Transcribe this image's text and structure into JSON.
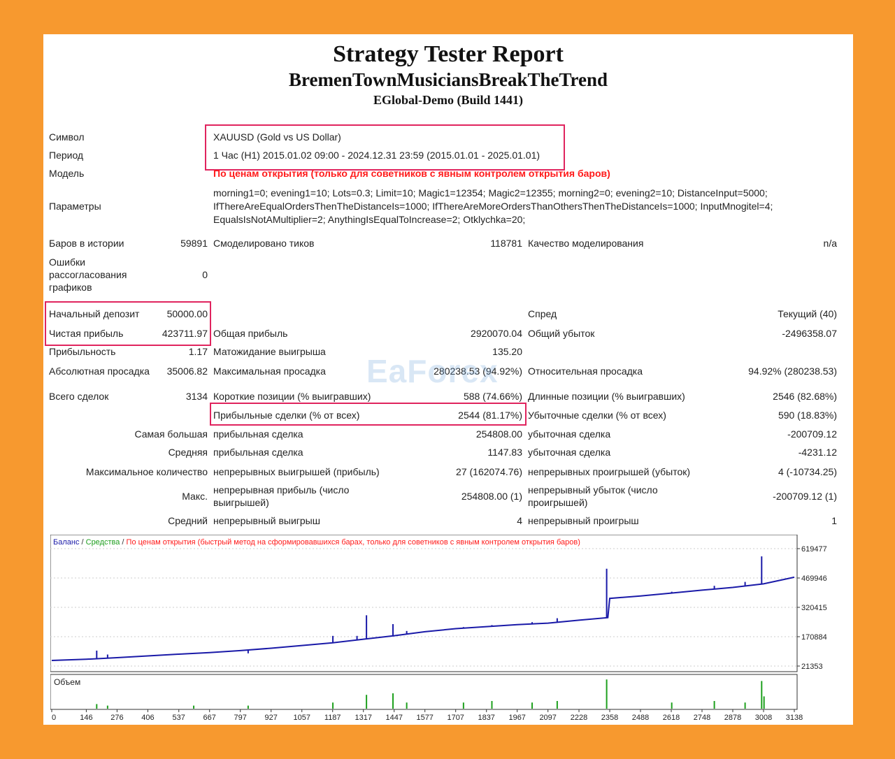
{
  "header": {
    "title": "Strategy Tester Report",
    "expert": "BremenTownMusiciansBreakTheTrend",
    "server": "EGlobal-Demo (Build 1441)"
  },
  "info": {
    "symbol_label": "Символ",
    "symbol_value": "XAUUSD (Gold vs US Dollar)",
    "period_label": "Период",
    "period_value": "1 Час (H1) 2015.01.02 09:00 - 2024.12.31 23:59 (2015.01.01 - 2025.01.01)",
    "model_label": "Модель",
    "model_value": "По ценам открытия (только для советников с явным контролем открытия баров)",
    "params_label": "Параметры",
    "params_line1": "morning1=0; evening1=10; Lots=0.3; Limit=10; Magic1=12354; Magic2=12355; morning2=0; evening2=10; DistanceInput=5000;",
    "params_line2": "IfThereAreEqualOrdersThenTheDistanceIs=1000; IfThereAreMoreOrdersThanOthersThenTheDistanceIs=1000; InputMnogitel=4;",
    "params_line3": "EqualsIsNotAMultiplier=2; AnythingIsEqualToIncrease=2; Otklychka=20;"
  },
  "stats": {
    "bars_label": "Баров в истории",
    "bars_value": "59891",
    "ticks_label": "Смоделировано тиков",
    "ticks_value": "118781",
    "quality_label": "Качество моделирования",
    "quality_value": "n/a",
    "errors_label1": "Ошибки",
    "errors_label2": "рассогласования",
    "errors_label3": "графиков",
    "errors_value": "0",
    "deposit_label": "Начальный депозит",
    "deposit_value": "50000.00",
    "spread_label": "Спред",
    "spread_value": "Текущий (40)",
    "net_label": "Чистая прибыль",
    "net_value": "423711.97",
    "gross_profit_label": "Общая прибыль",
    "gross_profit_value": "2920070.04",
    "gross_loss_label": "Общий убыток",
    "gross_loss_value": "-2496358.07",
    "pf_label": "Прибыльность",
    "pf_value": "1.17",
    "expect_label": "Матожидание выигрыша",
    "expect_value": "135.20",
    "abs_dd_label": "Абсолютная просадка",
    "abs_dd_value": "35006.82",
    "max_dd_label": "Максимальная просадка",
    "max_dd_value": "280238.53 (94.92%)",
    "rel_dd_label": "Относительная просадка",
    "rel_dd_value": "94.92% (280238.53)",
    "total_label": "Всего сделок",
    "total_value": "3134",
    "short_label": "Короткие позиции (% выигравших)",
    "short_value": "588 (74.66%)",
    "long_label": "Длинные позиции (% выигравших)",
    "long_value": "2546 (82.68%)",
    "win_label": "Прибыльные сделки (% от всех)",
    "win_value": "2544 (81.17%)",
    "loss_label": "Убыточные сделки (% от всех)",
    "loss_value": "590 (18.83%)",
    "largest_label": "Самая большая",
    "largest_win_label": "прибыльная сделка",
    "largest_win_value": "254808.00",
    "largest_loss_label": "убыточная сделка",
    "largest_loss_value": "-200709.12",
    "avg_label": "Средняя",
    "avg_win_label": "прибыльная сделка",
    "avg_win_value": "1147.83",
    "avg_loss_label": "убыточная сделка",
    "avg_loss_value": "-4231.12",
    "maxcons_label": "Максимальное количество",
    "maxcons_win_label": "непрерывных выигрышей (прибыль)",
    "maxcons_win_value": "27 (162074.76)",
    "maxcons_loss_label": "непрерывных проигрышей (убыток)",
    "maxcons_loss_value": "4 (-10734.25)",
    "maxprofit_label": "Макс.",
    "maxprofit_win_label1": "непрерывная прибыль (число",
    "maxprofit_win_label2": "выигрышей)",
    "maxprofit_win_value": "254808.00 (1)",
    "maxprofit_loss_label1": "непрерывный убыток (число",
    "maxprofit_loss_label2": "проигрышей)",
    "maxprofit_loss_value": "-200709.12 (1)",
    "avgcons_label": "Средний",
    "avgcons_win_label": "непрерывный выигрыш",
    "avgcons_win_value": "4",
    "avgcons_loss_label": "непрерывный проигрыш",
    "avgcons_loss_value": "1"
  },
  "watermark": "EaForex",
  "chart_data": {
    "type": "line",
    "legend": {
      "balance": "Баланс",
      "sep1": " / ",
      "equity": "Средства",
      "sep2": " / ",
      "model": "По ценам открытия (быстрый метод на сформировавшихся барах, только для советников с явным контролем открытия баров)"
    },
    "volume_label": "Объем",
    "y_ticks": [
      "619477",
      "469946",
      "320415",
      "170884",
      "21353"
    ],
    "ylim": [
      21353,
      619477
    ],
    "x_ticks": [
      "0",
      "146",
      "276",
      "406",
      "537",
      "667",
      "797",
      "927",
      "1057",
      "1187",
      "1317",
      "1447",
      "1577",
      "1707",
      "1837",
      "1967",
      "2097",
      "2228",
      "2358",
      "2488",
      "2618",
      "2748",
      "2878",
      "3008",
      "3138"
    ],
    "xlim": [
      0,
      3134
    ],
    "colors": {
      "balance": "#1a1aa8",
      "equity": "#1e9e1e",
      "model": "#ff1a1a",
      "volume": "#1ea01e"
    },
    "balance": [
      [
        0,
        50000
      ],
      [
        146,
        56000
      ],
      [
        276,
        64000
      ],
      [
        406,
        73000
      ],
      [
        537,
        82000
      ],
      [
        667,
        90000
      ],
      [
        797,
        100000
      ],
      [
        927,
        112000
      ],
      [
        1057,
        126000
      ],
      [
        1187,
        140000
      ],
      [
        1317,
        158000
      ],
      [
        1447,
        176000
      ],
      [
        1577,
        196000
      ],
      [
        1707,
        212000
      ],
      [
        1837,
        222000
      ],
      [
        1967,
        232000
      ],
      [
        2097,
        240000
      ],
      [
        2228,
        255000
      ],
      [
        2350,
        268000
      ],
      [
        2358,
        366000
      ],
      [
        2488,
        378000
      ],
      [
        2618,
        393000
      ],
      [
        2748,
        408000
      ],
      [
        2878,
        422000
      ],
      [
        3008,
        440000
      ],
      [
        3138,
        473700
      ]
    ],
    "spikes": [
      [
        190,
        100000
      ],
      [
        236,
        80000
      ],
      [
        600,
        85000
      ],
      [
        830,
        86000
      ],
      [
        1188,
        175000
      ],
      [
        1290,
        175000
      ],
      [
        1330,
        280000
      ],
      [
        1442,
        235000
      ],
      [
        1500,
        200000
      ],
      [
        1740,
        220000
      ],
      [
        1860,
        230000
      ],
      [
        2030,
        245000
      ],
      [
        2136,
        265000
      ],
      [
        2345,
        517000
      ],
      [
        2620,
        400000
      ],
      [
        2800,
        430000
      ],
      [
        2930,
        450000
      ],
      [
        3000,
        580000
      ]
    ],
    "volume": [
      [
        190,
        0.15
      ],
      [
        236,
        0.1
      ],
      [
        600,
        0.1
      ],
      [
        830,
        0.1
      ],
      [
        1188,
        0.2
      ],
      [
        1330,
        0.45
      ],
      [
        1442,
        0.5
      ],
      [
        1500,
        0.2
      ],
      [
        1740,
        0.2
      ],
      [
        1860,
        0.25
      ],
      [
        2030,
        0.2
      ],
      [
        2136,
        0.25
      ],
      [
        2345,
        0.95
      ],
      [
        2620,
        0.2
      ],
      [
        2800,
        0.25
      ],
      [
        2930,
        0.2
      ],
      [
        3000,
        0.9
      ],
      [
        3010,
        0.4
      ]
    ]
  }
}
